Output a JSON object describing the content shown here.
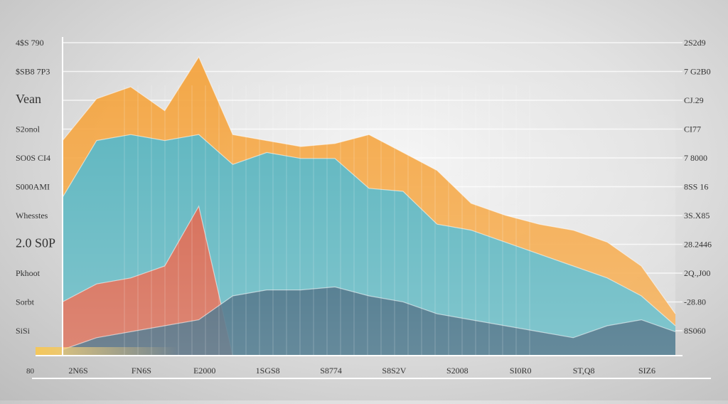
{
  "chart_data": {
    "type": "area",
    "title": "",
    "xlabel": "",
    "ylabel": "",
    "left_labels": [
      "4$S 790",
      "$SB8 7P3",
      "Vean",
      "S2onol",
      "SO0S CI4",
      "S000AMI",
      "Whesstes",
      "2.0 S0P",
      "Pkhoot",
      "Sorbt",
      "SiSi"
    ],
    "right_labels": [
      "2S2d9",
      "7 G2B0",
      "CJ.29",
      "CI77",
      "7 8000",
      "8SS 16",
      "3S.X85",
      "28.2446",
      "2Q.,J00",
      "-28.80",
      "8S060"
    ],
    "x_labels": [
      "2N6S",
      "FN6S",
      "E2000",
      "1SGS8",
      "S8774",
      "S8S2V",
      "S2008",
      "SI0R0",
      "ST,Q8",
      "SIZ6"
    ],
    "corner_label": "80",
    "x": [
      0,
      0.5,
      1,
      1.5,
      2,
      2.5,
      3,
      3.5,
      4,
      4.5,
      5,
      5.5,
      6,
      6.5,
      7,
      7.5,
      8,
      8.5,
      9
    ],
    "ylim": [
      0,
      100
    ],
    "series": [
      {
        "color": "#f4a23a",
        "values": [
          72,
          86,
          90,
          82,
          100,
          74,
          72,
          70,
          71,
          74,
          68,
          62,
          51,
          47,
          44,
          42,
          38,
          30,
          14
        ]
      },
      {
        "color": "#4fb3c4",
        "values": [
          53,
          72,
          74,
          72,
          74,
          64,
          68,
          66,
          66,
          56,
          55,
          44,
          42,
          38,
          34,
          30,
          26,
          20,
          10
        ]
      },
      {
        "color": "#e0553a",
        "values": [
          18,
          24,
          26,
          30,
          50,
          0,
          0,
          0,
          0,
          0,
          0,
          0,
          0,
          0,
          0,
          0,
          0,
          0,
          0
        ]
      },
      {
        "color": "#2f5a72",
        "values": [
          2,
          6,
          8,
          10,
          12,
          20,
          22,
          22,
          23,
          20,
          18,
          14,
          12,
          10,
          8,
          6,
          10,
          12,
          8
        ]
      }
    ],
    "legend": "none",
    "grid": true
  }
}
